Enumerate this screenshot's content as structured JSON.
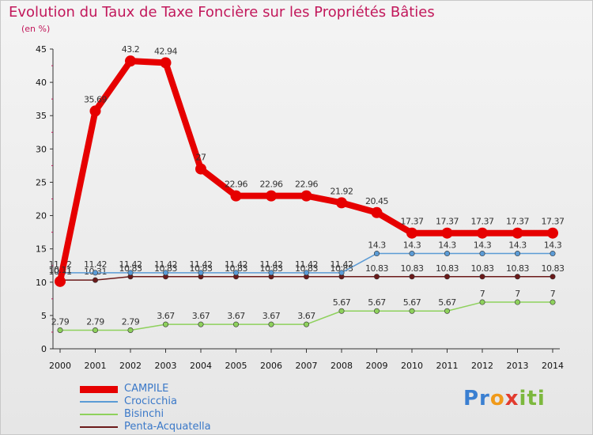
{
  "chart_data": {
    "type": "line",
    "title": "Evolution du Taux de Taxe Foncière sur les Propriétés Bâties",
    "unit_label": "(en %)",
    "xlabel": "",
    "ylabel": "(en %)",
    "ylim": [
      0,
      45
    ],
    "yticks": [
      0,
      5,
      10,
      15,
      20,
      25,
      30,
      35,
      40,
      45
    ],
    "categories": [
      "2000",
      "2001",
      "2002",
      "2003",
      "2004",
      "2005",
      "2006",
      "2007",
      "2008",
      "2009",
      "2010",
      "2011",
      "2012",
      "2013",
      "2014"
    ],
    "grid": false,
    "series": [
      {
        "name": "CAMPILE",
        "color": "#e60000",
        "values": [
          10.11,
          35.69,
          43.2,
          42.94,
          27,
          22.96,
          22.96,
          22.96,
          21.92,
          20.45,
          17.37,
          17.37,
          17.37,
          17.37,
          17.37
        ],
        "labels": [
          "10.11",
          "35.69",
          "43.2",
          "42.94",
          "27",
          "22.96",
          "22.96",
          "22.96",
          "21.92",
          "20.45",
          "17.37",
          "17.37",
          "17.37",
          "17.37",
          "17.37"
        ]
      },
      {
        "name": "Crocicchia",
        "color": "#5b9bd5",
        "values": [
          11.42,
          11.42,
          11.42,
          11.42,
          11.42,
          11.42,
          11.42,
          11.42,
          11.42,
          14.3,
          14.3,
          14.3,
          14.3,
          14.3,
          14.3
        ],
        "labels": [
          "11.42",
          "11.42",
          "11.42",
          "11.42",
          "11.42",
          "11.42",
          "11.42",
          "11.42",
          "11.42",
          "14.3",
          "14.3",
          "14.3",
          "14.3",
          "14.3",
          "14.3"
        ]
      },
      {
        "name": "Bisinchi",
        "color": "#8ed15c",
        "values": [
          2.79,
          2.79,
          2.79,
          3.67,
          3.67,
          3.67,
          3.67,
          3.67,
          5.67,
          5.67,
          5.67,
          5.67,
          7,
          7,
          7
        ],
        "labels": [
          "2.79",
          "2.79",
          "2.79",
          "3.67",
          "3.67",
          "3.67",
          "3.67",
          "3.67",
          "5.67",
          "5.67",
          "5.67",
          "5.67",
          "7",
          "7",
          "7"
        ]
      },
      {
        "name": "Penta-Acquatella",
        "color": "#6b1a1a",
        "values": [
          10.31,
          10.31,
          10.83,
          10.83,
          10.83,
          10.83,
          10.83,
          10.83,
          10.83,
          10.83,
          10.83,
          10.83,
          10.83,
          10.83,
          10.83
        ],
        "labels": [
          "10.31",
          "10.31",
          "10.83",
          "10.83",
          "10.83",
          "10.83",
          "10.83",
          "10.83",
          "10.83",
          "10.83",
          "10.83",
          "10.83",
          "10.83",
          "10.83",
          "10.83"
        ]
      }
    ]
  },
  "brand": {
    "name": "Proxiti",
    "parts": [
      "Pr",
      "o",
      "x",
      "iti"
    ],
    "colors": [
      "#3a7fd1",
      "#f09a1a",
      "#e23b2e",
      "#7cb83d"
    ]
  }
}
